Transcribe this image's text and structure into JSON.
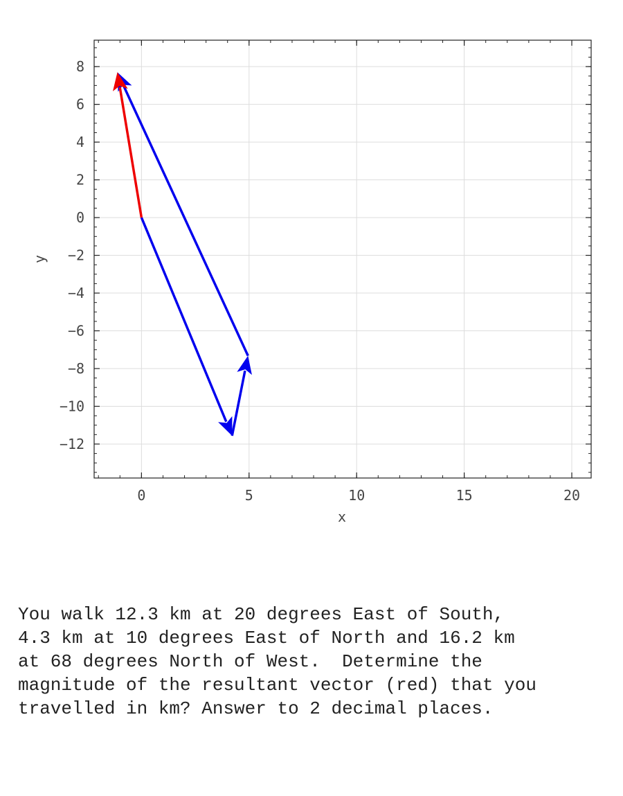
{
  "chart_data": {
    "type": "vector",
    "xlabel": "x",
    "ylabel": "y",
    "xlim": [
      -2.2,
      20.9
    ],
    "ylim": [
      -13.8,
      9.4
    ],
    "xticks": [
      0,
      5,
      10,
      15,
      20
    ],
    "yticks": [
      -12,
      -10,
      -8,
      -6,
      -4,
      -2,
      0,
      2,
      4,
      6,
      8
    ],
    "grid": true,
    "vectors": [
      {
        "from": [
          0,
          0
        ],
        "to": [
          4.21,
          -11.56
        ],
        "color": "#0000ee"
      },
      {
        "from": [
          4.21,
          -11.56
        ],
        "to": [
          4.95,
          -7.32
        ],
        "color": "#0000ee"
      },
      {
        "from": [
          4.95,
          -7.32
        ],
        "to": [
          -1.12,
          7.7
        ],
        "color": "#0000ee"
      },
      {
        "from": [
          0,
          0
        ],
        "to": [
          -1.12,
          7.7
        ],
        "color": "#ee0000"
      }
    ]
  },
  "question": "You walk 12.3 km at 20 degrees East of South,\n4.3 km at 10 degrees East of North and 16.2 km\nat 68 degrees North of West.  Determine the\nmagnitude of the resultant vector (red) that you\ntravelled in km? Answer to 2 decimal places."
}
